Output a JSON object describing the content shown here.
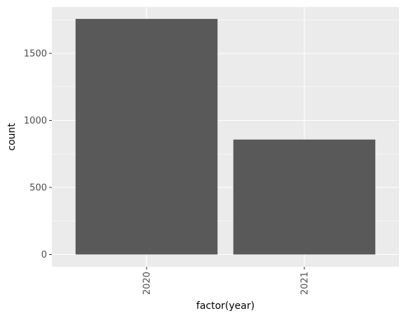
{
  "chart_data": {
    "type": "bar",
    "title": "",
    "xlabel": "factor(year)",
    "ylabel": "count",
    "categories": [
      "2020",
      "2021"
    ],
    "values": [
      1757,
      857
    ],
    "ylim": [
      0,
      1760
    ],
    "yticks": [
      0,
      500,
      1000,
      1500
    ],
    "ytick_labels": [
      "0",
      "500",
      "1000",
      "1500"
    ],
    "grid": true,
    "legend": "none",
    "x_tick_rotation": "vertical",
    "colors": {
      "panel_background": "#ebebeb",
      "grid": "#ffffff",
      "bar_fill": "#595959",
      "tick_text": "#4d4d4d",
      "tick_mark": "#333333"
    }
  }
}
